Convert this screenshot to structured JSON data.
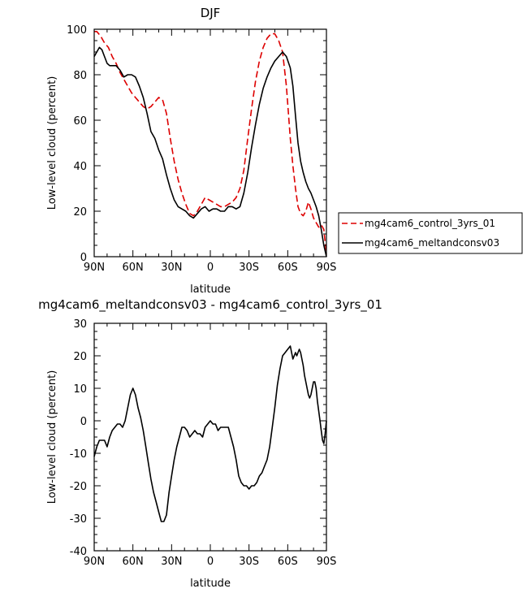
{
  "chart_data": [
    {
      "type": "line",
      "title": "DJF",
      "xlabel": "latitude",
      "ylabel": "Low-level cloud (percent)",
      "xlim": [
        -90,
        90
      ],
      "ylim": [
        0,
        100
      ],
      "x_ticks": [
        -90,
        -60,
        -30,
        0,
        30,
        60,
        90
      ],
      "x_tick_labels": [
        "90N",
        "60N",
        "30N",
        "0",
        "30S",
        "60S",
        "90S"
      ],
      "y_ticks": [
        0,
        20,
        40,
        60,
        80,
        100
      ],
      "y_tick_labels": [
        "0",
        "20",
        "40",
        "60",
        "80",
        "100"
      ],
      "legend": {
        "placement": "right",
        "entries": [
          "mg4cam6_control_3yrs_01",
          "mg4cam6_meltandconsv03"
        ]
      },
      "series": [
        {
          "name": "mg4cam6_control_3yrs_01",
          "color": "#dd0000",
          "dash": true,
          "x": [
            -90,
            -88,
            -85,
            -82,
            -79,
            -76,
            -73,
            -70,
            -67,
            -64,
            -61,
            -58,
            -55,
            -52,
            -49,
            -46,
            -43,
            -40,
            -37,
            -34,
            -31,
            -28,
            -25,
            -22,
            -19,
            -16,
            -13,
            -10,
            -7,
            -4,
            -1,
            2,
            5,
            8,
            11,
            14,
            17,
            20,
            23,
            26,
            29,
            32,
            35,
            38,
            41,
            44,
            47,
            50,
            53,
            56,
            59,
            62,
            64,
            66,
            68,
            70,
            72,
            74,
            76,
            78,
            80,
            82,
            84,
            86,
            88,
            90
          ],
          "y": [
            99,
            99,
            97,
            94,
            92,
            88,
            85,
            81,
            78,
            75,
            72,
            70,
            68,
            66,
            65,
            66,
            68,
            70,
            69,
            63,
            52,
            42,
            34,
            28,
            23,
            19,
            18,
            20,
            23,
            26,
            25,
            24,
            23,
            22,
            22,
            23,
            24,
            26,
            30,
            38,
            52,
            65,
            77,
            86,
            92,
            96,
            98,
            98,
            95,
            90,
            75,
            52,
            40,
            30,
            22,
            19,
            18,
            20,
            24,
            21,
            17,
            15,
            13,
            14,
            12,
            1
          ]
        },
        {
          "name": "mg4cam6_meltandconsv03",
          "color": "#000000",
          "dash": false,
          "x": [
            -90,
            -88,
            -86,
            -84,
            -82,
            -80,
            -78,
            -76,
            -73,
            -70,
            -67,
            -64,
            -61,
            -58,
            -55,
            -52,
            -49,
            -46,
            -43,
            -40,
            -37,
            -34,
            -31,
            -28,
            -25,
            -22,
            -19,
            -16,
            -13,
            -10,
            -7,
            -4,
            -1,
            2,
            5,
            8,
            11,
            14,
            17,
            20,
            23,
            26,
            29,
            32,
            35,
            38,
            41,
            44,
            47,
            50,
            53,
            56,
            59,
            62,
            64,
            66,
            68,
            70,
            72,
            74,
            76,
            78,
            80,
            82,
            84,
            86,
            88,
            90
          ],
          "y": [
            88,
            90,
            92,
            91,
            88,
            85,
            84,
            84,
            84,
            82,
            79,
            80,
            80,
            79,
            75,
            70,
            63,
            55,
            52,
            47,
            43,
            36,
            30,
            25,
            22,
            21,
            20,
            18,
            17,
            19,
            21,
            22,
            20,
            21,
            21,
            20,
            20,
            22,
            22,
            21,
            22,
            28,
            37,
            48,
            58,
            67,
            74,
            79,
            83,
            86,
            88,
            90,
            88,
            83,
            75,
            62,
            50,
            42,
            37,
            33,
            30,
            28,
            25,
            22,
            18,
            12,
            5,
            0
          ]
        }
      ]
    },
    {
      "type": "line",
      "title": "mg4cam6_meltandconsv03 - mg4cam6_control_3yrs_01",
      "xlabel": "latitude",
      "ylabel": "Low-level cloud (percent)",
      "xlim": [
        -90,
        90
      ],
      "ylim": [
        -40,
        30
      ],
      "x_ticks": [
        -90,
        -60,
        -30,
        0,
        30,
        60,
        90
      ],
      "x_tick_labels": [
        "90N",
        "60N",
        "30N",
        "0",
        "30S",
        "60S",
        "90S"
      ],
      "y_ticks": [
        -40,
        -30,
        -20,
        -10,
        0,
        10,
        20,
        30
      ],
      "y_tick_labels": [
        "-40",
        "-30",
        "-20",
        "-10",
        "0",
        "10",
        "20",
        "30"
      ],
      "series": [
        {
          "color": "#000000",
          "dash": false,
          "x": [
            -90,
            -88,
            -86,
            -84,
            -82,
            -80,
            -78,
            -76,
            -74,
            -72,
            -70,
            -68,
            -66,
            -64,
            -62,
            -60,
            -58,
            -56,
            -54,
            -52,
            -50,
            -48,
            -46,
            -44,
            -42,
            -40,
            -38,
            -36,
            -34,
            -32,
            -30,
            -28,
            -26,
            -24,
            -22,
            -20,
            -18,
            -16,
            -14,
            -12,
            -10,
            -8,
            -6,
            -4,
            -2,
            0,
            2,
            4,
            6,
            8,
            10,
            12,
            14,
            16,
            18,
            20,
            22,
            24,
            26,
            28,
            30,
            32,
            34,
            36,
            38,
            40,
            42,
            44,
            46,
            48,
            50,
            52,
            54,
            56,
            58,
            60,
            62,
            64,
            66,
            67,
            68,
            69,
            70,
            71,
            72,
            73,
            74,
            75,
            76,
            77,
            78,
            79,
            80,
            81,
            82,
            83,
            84,
            85,
            86,
            87,
            88,
            89,
            90
          ],
          "y": [
            -11,
            -8,
            -6,
            -6,
            -6,
            -8,
            -5,
            -3,
            -2,
            -1,
            -1,
            -2,
            0,
            4,
            8,
            10,
            8,
            4,
            1,
            -3,
            -8,
            -13,
            -18,
            -22,
            -25,
            -28,
            -31,
            -31,
            -29,
            -22,
            -17,
            -12,
            -8,
            -5,
            -2,
            -2,
            -3,
            -5,
            -4,
            -3,
            -4,
            -4,
            -5,
            -2,
            -1,
            0,
            -1,
            -1,
            -3,
            -2,
            -2,
            -2,
            -2,
            -5,
            -8,
            -12,
            -17,
            -19,
            -20,
            -20,
            -21,
            -20,
            -20,
            -19,
            -17,
            -16,
            -14,
            -12,
            -8,
            -2,
            4,
            11,
            16,
            20,
            21,
            22,
            23,
            19,
            21,
            20,
            21,
            22,
            21,
            19,
            17,
            14,
            12,
            10,
            8,
            7,
            8,
            10,
            12,
            12,
            10,
            6,
            3,
            0,
            -3,
            -6,
            -7,
            -4,
            0
          ]
        }
      ]
    }
  ]
}
